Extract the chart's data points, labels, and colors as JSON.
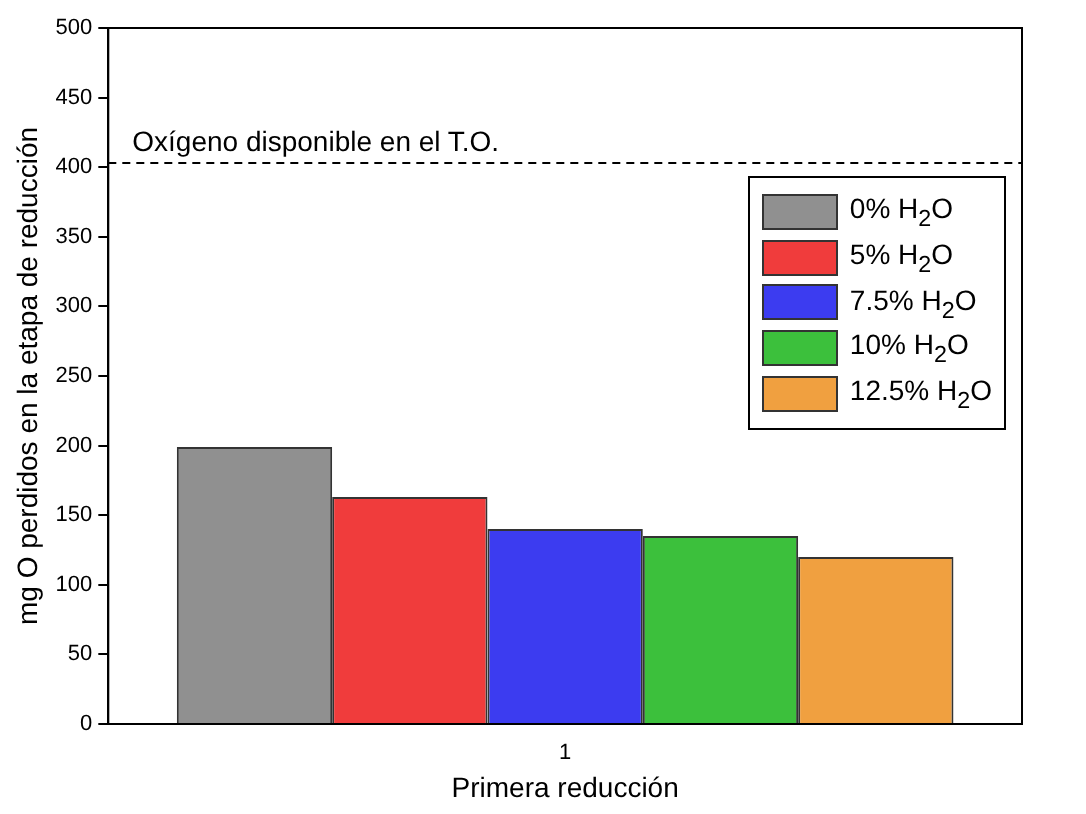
{
  "chart_data": {
    "type": "bar",
    "xlabel": "Primera reducción",
    "ylabel": "mg O perdidos en la etapa de reducción",
    "categories": [
      "1"
    ],
    "series": [
      {
        "name": "0% H$_{2}$O",
        "color": "#909090",
        "values": [
          199
        ]
      },
      {
        "name": "5% H$_{2}$O",
        "color": "#f03c3c",
        "values": [
          163
        ]
      },
      {
        "name": "7.5% H$_{2}$O",
        "color": "#3c3cf0",
        "values": [
          140
        ]
      },
      {
        "name": "10% H$_{2}$O",
        "color": "#3cc03c",
        "values": [
          135
        ]
      },
      {
        "name": "12.5% H$_{2}$O",
        "color": "#f0a040",
        "values": [
          120
        ]
      }
    ],
    "ylim": [
      0,
      500
    ],
    "yticks": [
      0,
      50,
      100,
      150,
      200,
      250,
      300,
      350,
      400,
      450,
      500
    ],
    "ref_lines": [
      {
        "axis": "y",
        "value": 403,
        "label": "Oxígeno disponible en el T.O.",
        "line_style": "dashed",
        "color": "#000000"
      }
    ],
    "legend": "top right",
    "grid": false
  }
}
